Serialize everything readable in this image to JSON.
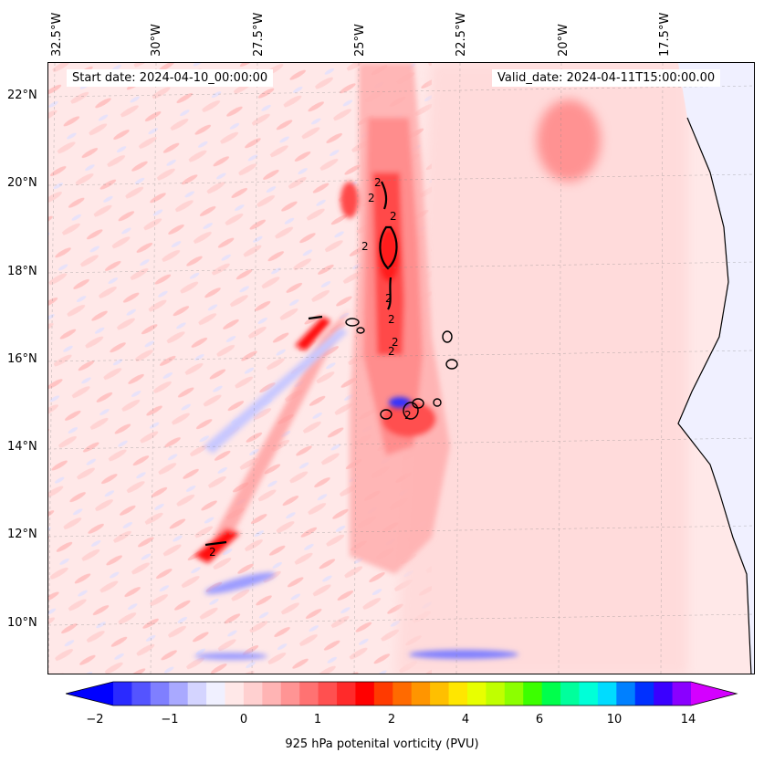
{
  "map": {
    "start_date": "Start date: 2024-04-10_00:00:00",
    "valid_date": "Valid_date: 2024-04-11T15:00:00.00",
    "lon_labels": [
      "32.5°W",
      "30°W",
      "27.5°W",
      "25°W",
      "22.5°W",
      "20°W",
      "17.5°W"
    ],
    "lat_labels": [
      "22°N",
      "20°N",
      "18°N",
      "16°N",
      "14°N",
      "12°N",
      "10°N"
    ],
    "contour_labels": [
      "2",
      "2",
      "2",
      "2",
      "2",
      "2",
      "2",
      "2",
      "2",
      "2"
    ]
  },
  "colorbar": {
    "label": "925 hPa potenital vorticity (PVU)",
    "tick_labels": [
      "−2",
      "−1",
      "0",
      "1",
      "2",
      "4",
      "6",
      "10",
      "14"
    ],
    "colors": [
      "#0000ff",
      "#2a2aff",
      "#5454ff",
      "#7f7fff",
      "#a9a9ff",
      "#d4d4ff",
      "#f0f0ff",
      "#ffe8e8",
      "#ffd0d0",
      "#ffb4b4",
      "#ff9494",
      "#ff7272",
      "#ff5050",
      "#ff2a2a",
      "#ff0000",
      "#ff3a00",
      "#ff6a00",
      "#ff9500",
      "#ffbf00",
      "#ffe600",
      "#e8ff00",
      "#c0ff00",
      "#8cff00",
      "#3cff00",
      "#00ff4c",
      "#00ff9c",
      "#00ffd8",
      "#00dcff",
      "#0080ff",
      "#0030ff",
      "#3a00ff",
      "#8a00ff",
      "#d400ff"
    ]
  }
}
